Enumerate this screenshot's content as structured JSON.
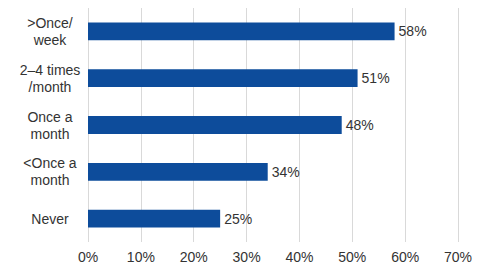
{
  "chart_data": {
    "type": "bar",
    "orientation": "horizontal",
    "categories": [
      ">Once/\nweek",
      "2–4 times\n/month",
      "Once a\nmonth",
      "<Once a\nmonth",
      "Never"
    ],
    "values": [
      58,
      51,
      48,
      34,
      25
    ],
    "value_labels": [
      "58%",
      "51%",
      "48%",
      "34%",
      "25%"
    ],
    "color": "#0d4c9b",
    "xlim": [
      0,
      70
    ],
    "xticks": [
      {
        "value": 0,
        "label": "0%"
      },
      {
        "value": 10,
        "label": "10%"
      },
      {
        "value": 20,
        "label": "20%"
      },
      {
        "value": 30,
        "label": "30%"
      },
      {
        "value": 40,
        "label": "40%"
      },
      {
        "value": 50,
        "label": "50%"
      },
      {
        "value": 60,
        "label": "60%"
      },
      {
        "value": 70,
        "label": "70%"
      }
    ],
    "grid": true,
    "data_labels": true
  }
}
